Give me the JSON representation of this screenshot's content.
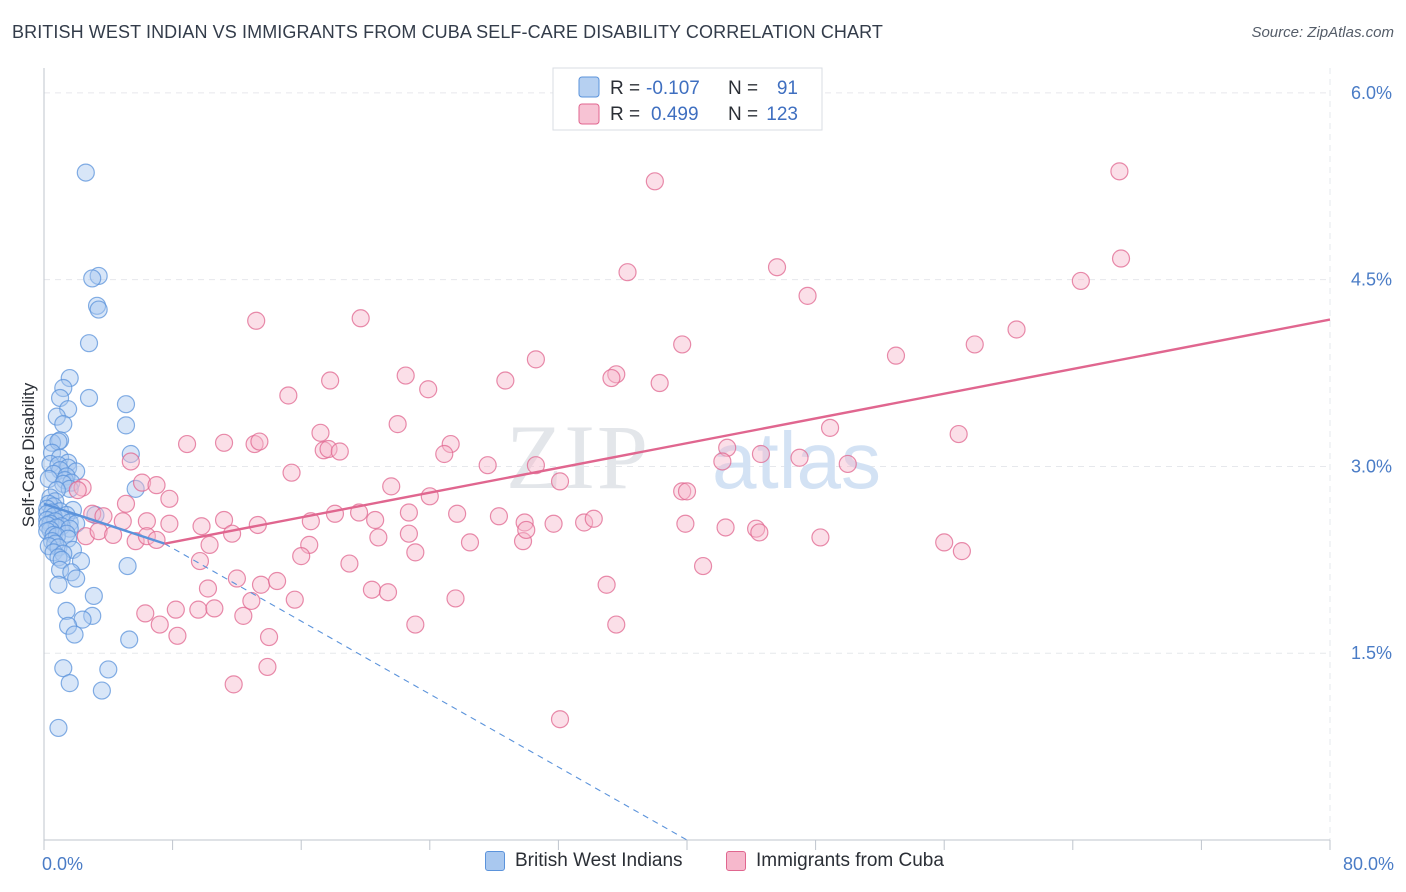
{
  "title": "BRITISH WEST INDIAN VS IMMIGRANTS FROM CUBA SELF-CARE DISABILITY CORRELATION CHART",
  "source": "Source: ZipAtlas.com",
  "watermark": {
    "zip": "ZIP",
    "atlas": "atlas"
  },
  "legend_top": {
    "r_label": "R =",
    "n_label": "N =",
    "rows": [
      {
        "r": "-0.107",
        "n": "91",
        "color": "#a9c8ef"
      },
      {
        "r": "0.499",
        "n": "123",
        "color": "#f6b8cc"
      }
    ]
  },
  "chart_data": {
    "type": "scatter",
    "title": "BRITISH WEST INDIAN VS IMMIGRANTS FROM CUBA SELF-CARE DISABILITY CORRELATION CHART",
    "xlabel": "",
    "ylabel": "Self-Care Disability",
    "xlim": [
      0,
      80
    ],
    "ylim": [
      0,
      6.2
    ],
    "x_tick_labels": [
      "0.0%",
      "80.0%"
    ],
    "y_ticks": [
      1.5,
      3.0,
      4.5,
      6.0
    ],
    "y_tick_labels": [
      "1.5%",
      "3.0%",
      "4.5%",
      "6.0%"
    ],
    "grid": true,
    "legend_placement": "bottom-center",
    "series": [
      {
        "name": "British West Indians",
        "color": "#5b93db",
        "fill": "#a9c8ef",
        "r": -0.107,
        "n": 91,
        "trend": {
          "solid": [
            [
              0,
              2.7
            ],
            [
              7.5,
              2.38
            ]
          ],
          "dashed": [
            [
              7.5,
              2.38
            ],
            [
              40,
              0.0
            ]
          ]
        },
        "points": [
          [
            2.6,
            5.36
          ],
          [
            3.4,
            4.53
          ],
          [
            3.0,
            4.51
          ],
          [
            3.3,
            4.29
          ],
          [
            3.4,
            4.26
          ],
          [
            2.8,
            3.99
          ],
          [
            1.6,
            3.71
          ],
          [
            1.2,
            3.63
          ],
          [
            1.0,
            3.55
          ],
          [
            2.8,
            3.55
          ],
          [
            1.5,
            3.46
          ],
          [
            5.1,
            3.5
          ],
          [
            0.8,
            3.4
          ],
          [
            1.2,
            3.34
          ],
          [
            5.1,
            3.33
          ],
          [
            1.0,
            3.21
          ],
          [
            0.5,
            3.19
          ],
          [
            0.9,
            3.2
          ],
          [
            0.5,
            3.11
          ],
          [
            5.4,
            3.1
          ],
          [
            1.0,
            3.07
          ],
          [
            1.5,
            3.03
          ],
          [
            0.4,
            3.02
          ],
          [
            0.9,
            3.01
          ],
          [
            1.5,
            2.99
          ],
          [
            1.0,
            2.97
          ],
          [
            2.0,
            2.96
          ],
          [
            0.6,
            2.94
          ],
          [
            1.4,
            2.92
          ],
          [
            0.3,
            2.9
          ],
          [
            1.3,
            2.89
          ],
          [
            1.7,
            2.87
          ],
          [
            1.2,
            2.86
          ],
          [
            1.6,
            2.82
          ],
          [
            5.7,
            2.82
          ],
          [
            0.8,
            2.81
          ],
          [
            0.4,
            2.75
          ],
          [
            0.7,
            2.72
          ],
          [
            0.3,
            2.7
          ],
          [
            0.6,
            2.68
          ],
          [
            0.2,
            2.66
          ],
          [
            1.8,
            2.65
          ],
          [
            1.0,
            2.64
          ],
          [
            0.5,
            2.63
          ],
          [
            0.2,
            2.62
          ],
          [
            1.4,
            2.61
          ],
          [
            3.2,
            2.61
          ],
          [
            0.6,
            2.6
          ],
          [
            1.1,
            2.58
          ],
          [
            0.2,
            2.57
          ],
          [
            0.7,
            2.56
          ],
          [
            1.6,
            2.55
          ],
          [
            0.4,
            2.54
          ],
          [
            2.0,
            2.54
          ],
          [
            0.2,
            2.53
          ],
          [
            1.1,
            2.52
          ],
          [
            0.8,
            2.51
          ],
          [
            1.6,
            2.5
          ],
          [
            0.4,
            2.49
          ],
          [
            0.2,
            2.48
          ],
          [
            1.4,
            2.46
          ],
          [
            0.6,
            2.45
          ],
          [
            0.8,
            2.44
          ],
          [
            1.5,
            2.42
          ],
          [
            0.5,
            2.4
          ],
          [
            0.7,
            2.38
          ],
          [
            0.3,
            2.36
          ],
          [
            0.9,
            2.35
          ],
          [
            1.8,
            2.33
          ],
          [
            0.6,
            2.31
          ],
          [
            1.2,
            2.3
          ],
          [
            0.9,
            2.27
          ],
          [
            1.1,
            2.25
          ],
          [
            2.3,
            2.24
          ],
          [
            5.2,
            2.2
          ],
          [
            1.0,
            2.17
          ],
          [
            1.7,
            2.15
          ],
          [
            2.0,
            2.1
          ],
          [
            0.9,
            2.05
          ],
          [
            3.1,
            1.96
          ],
          [
            1.4,
            1.84
          ],
          [
            3.0,
            1.8
          ],
          [
            2.4,
            1.77
          ],
          [
            1.5,
            1.72
          ],
          [
            1.9,
            1.65
          ],
          [
            5.3,
            1.61
          ],
          [
            1.2,
            1.38
          ],
          [
            4.0,
            1.37
          ],
          [
            1.6,
            1.26
          ],
          [
            3.6,
            1.2
          ],
          [
            0.9,
            0.9
          ]
        ]
      },
      {
        "name": "Immigrants from Cuba",
        "color": "#e0668f",
        "fill": "#f6b8cc",
        "r": 0.499,
        "n": 123,
        "trend": {
          "solid": [
            [
              7.5,
              2.38
            ],
            [
              80,
              4.18
            ]
          ]
        },
        "points": [
          [
            66.9,
            5.37
          ],
          [
            38.0,
            5.29
          ],
          [
            67.0,
            4.67
          ],
          [
            64.5,
            4.49
          ],
          [
            36.3,
            4.56
          ],
          [
            45.6,
            4.6
          ],
          [
            47.5,
            4.37
          ],
          [
            13.2,
            4.17
          ],
          [
            19.7,
            4.19
          ],
          [
            60.5,
            4.1
          ],
          [
            57.9,
            3.98
          ],
          [
            39.7,
            3.98
          ],
          [
            53.0,
            3.89
          ],
          [
            30.6,
            3.86
          ],
          [
            28.7,
            3.69
          ],
          [
            22.5,
            3.73
          ],
          [
            35.6,
            3.74
          ],
          [
            35.3,
            3.71
          ],
          [
            38.3,
            3.67
          ],
          [
            23.9,
            3.62
          ],
          [
            15.2,
            3.57
          ],
          [
            17.8,
            3.69
          ],
          [
            48.9,
            3.31
          ],
          [
            56.9,
            3.26
          ],
          [
            17.2,
            3.27
          ],
          [
            22.0,
            3.34
          ],
          [
            8.9,
            3.18
          ],
          [
            11.2,
            3.19
          ],
          [
            13.1,
            3.18
          ],
          [
            13.4,
            3.2
          ],
          [
            17.4,
            3.13
          ],
          [
            17.7,
            3.14
          ],
          [
            18.4,
            3.12
          ],
          [
            25.3,
            3.18
          ],
          [
            24.9,
            3.1
          ],
          [
            42.5,
            3.15
          ],
          [
            42.2,
            3.04
          ],
          [
            47.0,
            3.07
          ],
          [
            50.0,
            3.02
          ],
          [
            27.6,
            3.01
          ],
          [
            30.6,
            3.01
          ],
          [
            15.4,
            2.95
          ],
          [
            32.1,
            2.88
          ],
          [
            21.6,
            2.84
          ],
          [
            39.7,
            2.8
          ],
          [
            5.4,
            3.04
          ],
          [
            6.1,
            2.87
          ],
          [
            7.0,
            2.85
          ],
          [
            7.8,
            2.74
          ],
          [
            5.1,
            2.7
          ],
          [
            2.4,
            2.83
          ],
          [
            2.1,
            2.81
          ],
          [
            3.0,
            2.62
          ],
          [
            3.7,
            2.6
          ],
          [
            4.9,
            2.56
          ],
          [
            6.4,
            2.56
          ],
          [
            7.8,
            2.54
          ],
          [
            9.8,
            2.52
          ],
          [
            11.2,
            2.57
          ],
          [
            13.3,
            2.53
          ],
          [
            18.1,
            2.62
          ],
          [
            20.6,
            2.57
          ],
          [
            22.7,
            2.63
          ],
          [
            24.0,
            2.76
          ],
          [
            25.7,
            2.62
          ],
          [
            28.3,
            2.6
          ],
          [
            29.9,
            2.55
          ],
          [
            31.7,
            2.54
          ],
          [
            33.6,
            2.55
          ],
          [
            34.2,
            2.58
          ],
          [
            39.9,
            2.54
          ],
          [
            42.4,
            2.51
          ],
          [
            44.3,
            2.5
          ],
          [
            48.3,
            2.43
          ],
          [
            56.0,
            2.39
          ],
          [
            57.1,
            2.32
          ],
          [
            2.6,
            2.44
          ],
          [
            3.4,
            2.48
          ],
          [
            4.3,
            2.45
          ],
          [
            5.7,
            2.4
          ],
          [
            6.4,
            2.44
          ],
          [
            7.0,
            2.41
          ],
          [
            10.3,
            2.37
          ],
          [
            11.7,
            2.46
          ],
          [
            16.5,
            2.37
          ],
          [
            16.6,
            2.56
          ],
          [
            19.6,
            2.63
          ],
          [
            20.8,
            2.43
          ],
          [
            22.7,
            2.46
          ],
          [
            23.1,
            2.31
          ],
          [
            26.5,
            2.39
          ],
          [
            29.8,
            2.4
          ],
          [
            30.0,
            2.49
          ],
          [
            9.7,
            2.24
          ],
          [
            12.0,
            2.1
          ],
          [
            13.5,
            2.05
          ],
          [
            14.5,
            2.08
          ],
          [
            15.6,
            1.93
          ],
          [
            16.0,
            2.28
          ],
          [
            19.0,
            2.22
          ],
          [
            20.4,
            2.01
          ],
          [
            21.4,
            1.99
          ],
          [
            23.1,
            1.73
          ],
          [
            25.6,
            1.94
          ],
          [
            35.0,
            2.05
          ],
          [
            35.6,
            1.73
          ],
          [
            41.0,
            2.2
          ],
          [
            6.3,
            1.82
          ],
          [
            7.2,
            1.73
          ],
          [
            8.3,
            1.64
          ],
          [
            8.2,
            1.85
          ],
          [
            9.6,
            1.85
          ],
          [
            10.2,
            2.02
          ],
          [
            10.6,
            1.86
          ],
          [
            12.4,
            1.8
          ],
          [
            12.9,
            1.92
          ],
          [
            14.0,
            1.63
          ],
          [
            13.9,
            1.39
          ],
          [
            11.8,
            1.25
          ],
          [
            32.1,
            0.97
          ],
          [
            44.5,
            2.47
          ],
          [
            40.0,
            2.8
          ],
          [
            44.6,
            3.1
          ]
        ]
      }
    ]
  }
}
